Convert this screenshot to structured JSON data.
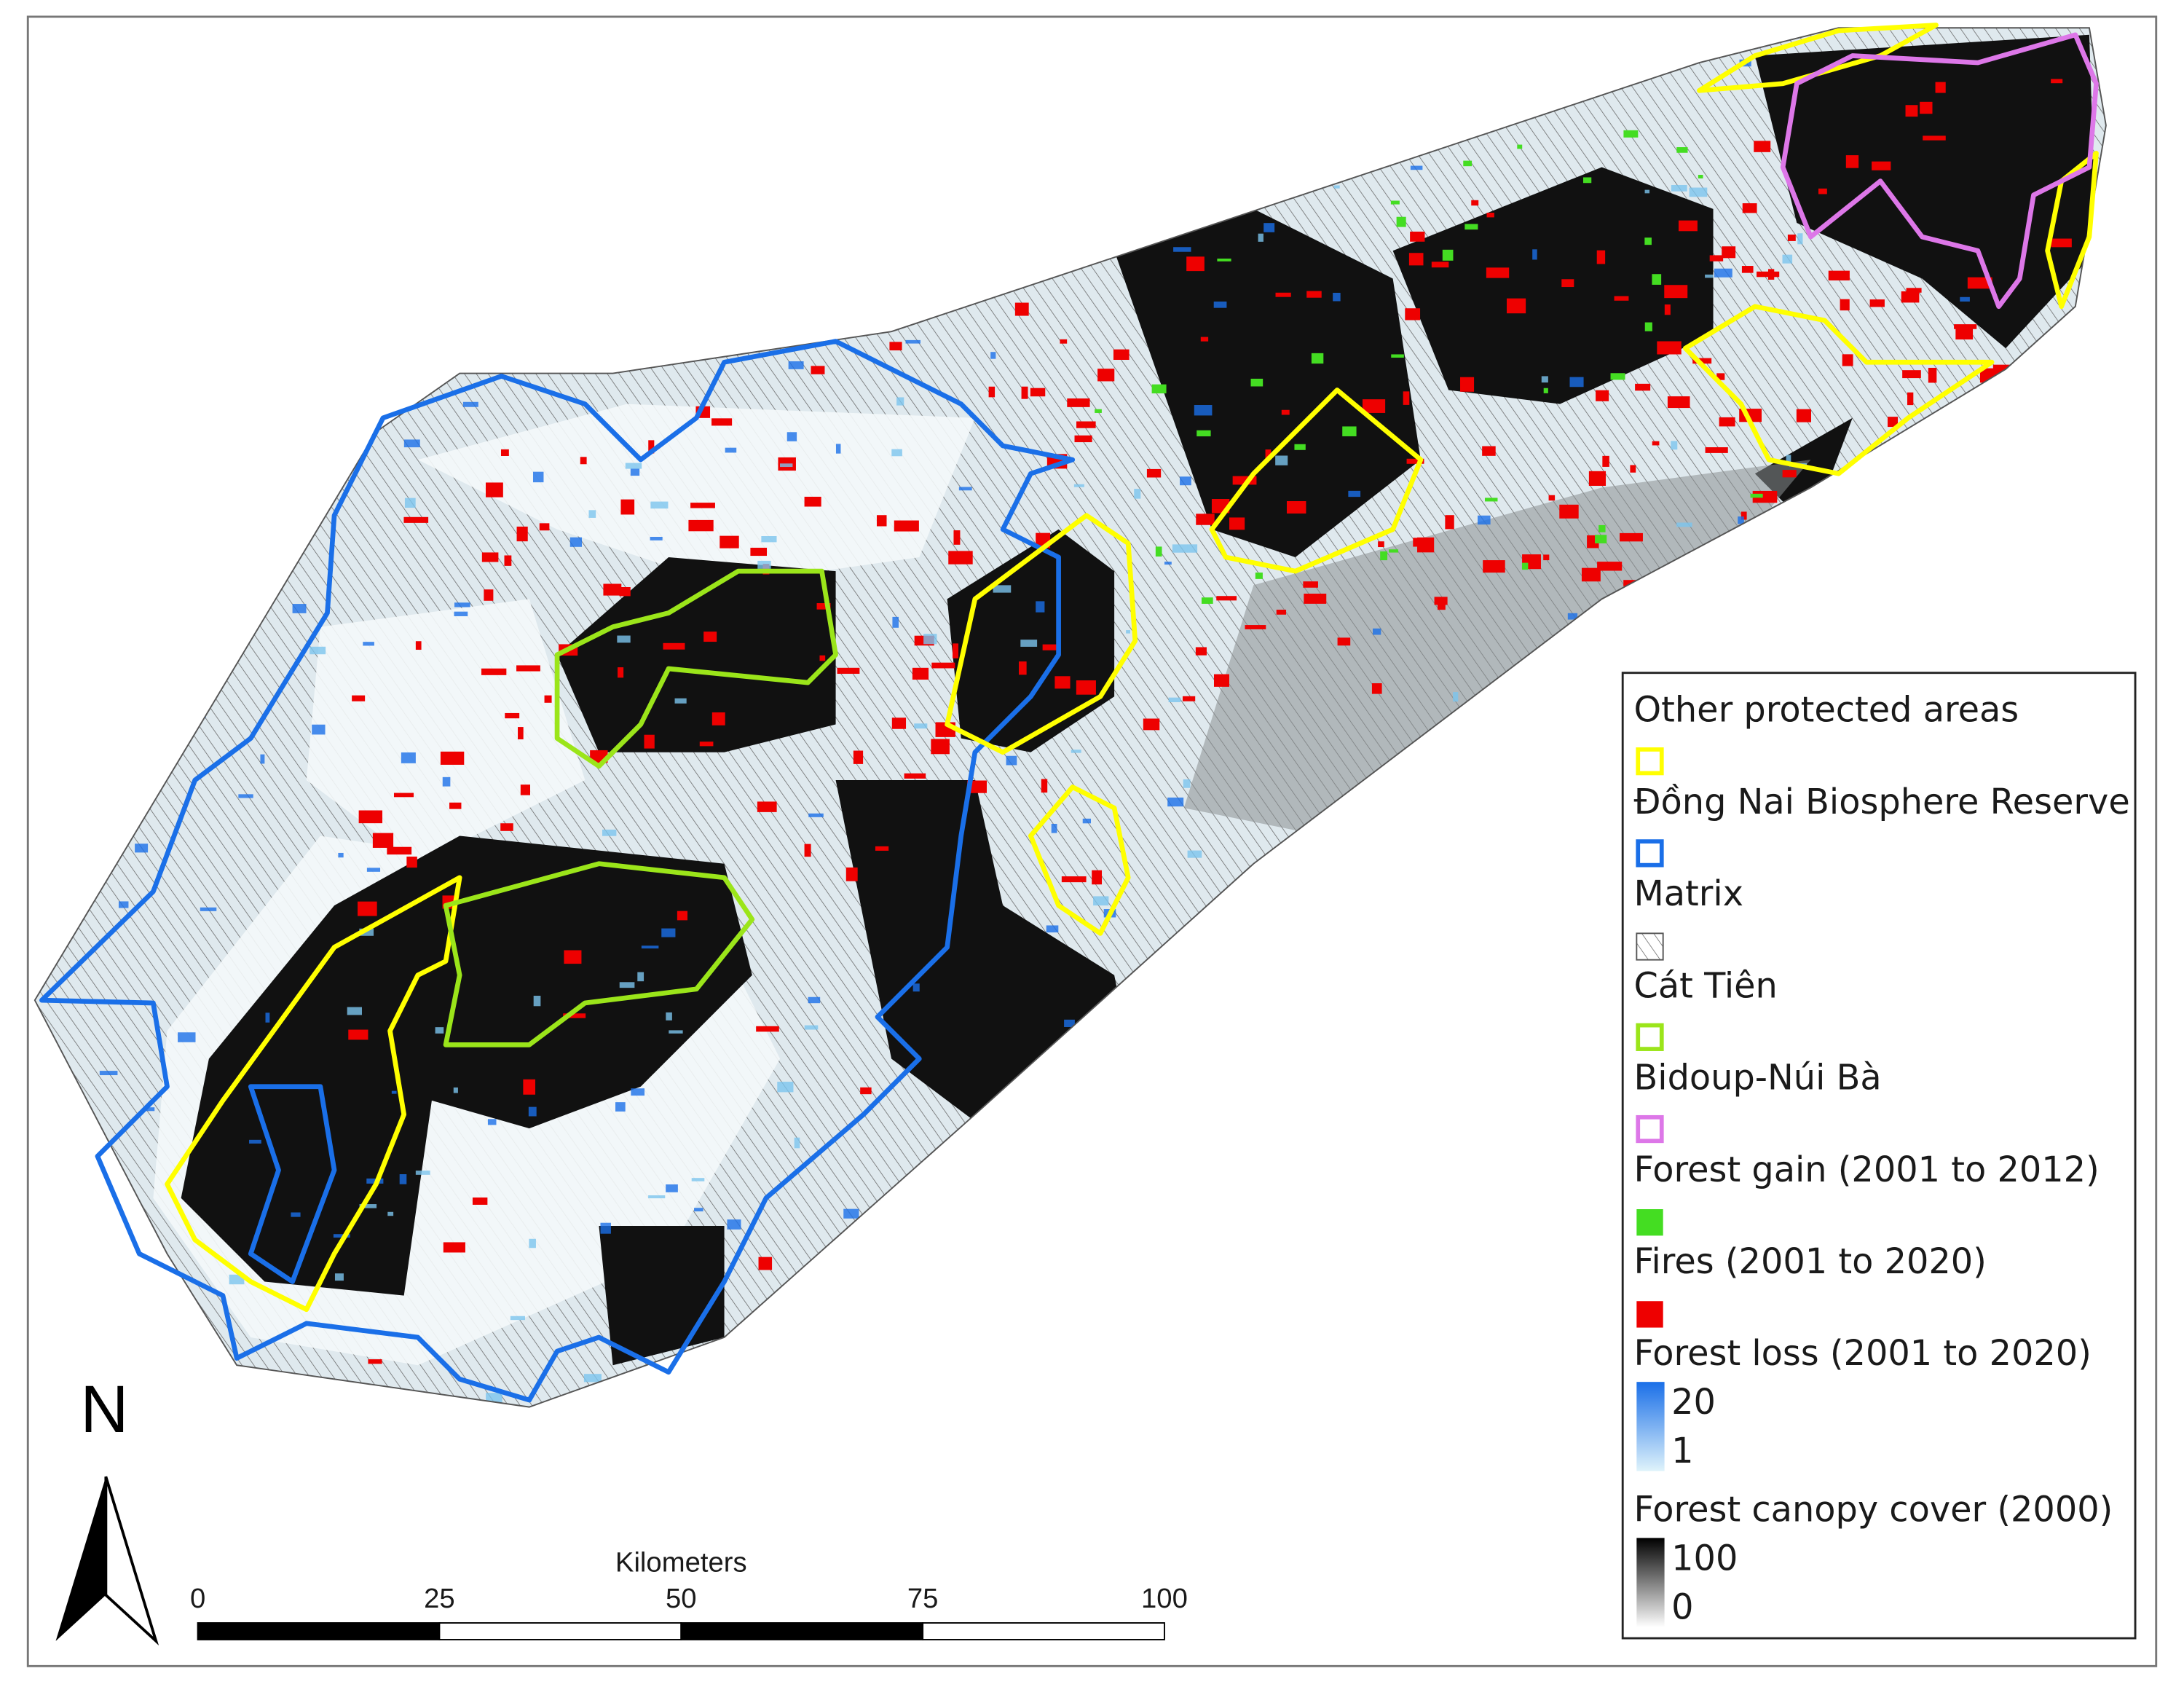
{
  "north_arrow": {
    "label": "N"
  },
  "scale_bar": {
    "title": "Kilometers",
    "ticks": [
      0,
      25,
      50,
      75,
      100
    ]
  },
  "legend": {
    "items": [
      {
        "label": "Other protected areas",
        "color": "#ffff00",
        "symbol": "outline"
      },
      {
        "label": "Đồng Nai Biosphere Reserve",
        "color": "#1a6fe8",
        "symbol": "outline"
      },
      {
        "label": "Matrix",
        "color": "#555555",
        "symbol": "hatch"
      },
      {
        "label": "Cát Tiên",
        "color": "#9be51a",
        "symbol": "outline"
      },
      {
        "label": "Bidoup-Núi Bà",
        "color": "#dd77e8",
        "symbol": "outline"
      },
      {
        "label": "Forest gain (2001 to 2012)",
        "color": "#44dd22",
        "symbol": "fill"
      },
      {
        "label": "Fires (2001 to 2020)",
        "color": "#ee0000",
        "symbol": "fill"
      }
    ],
    "ramps": [
      {
        "label": "Forest loss (2001 to 2020)",
        "max": 20,
        "min": 1,
        "colors": [
          "#1a6fe8",
          "#dff3fb"
        ]
      },
      {
        "label": "Forest canopy cover (2000)",
        "max": 100,
        "min": 0,
        "colors": [
          "#000000",
          "#ffffff"
        ]
      }
    ]
  }
}
